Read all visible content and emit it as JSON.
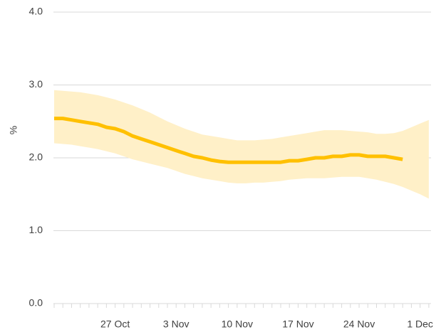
{
  "chart_data": {
    "type": "line",
    "y_label": "%",
    "categories": [
      null,
      null,
      null,
      null,
      null,
      null,
      null,
      "27 Oct",
      null,
      null,
      null,
      null,
      null,
      null,
      "3 Nov",
      null,
      null,
      null,
      null,
      null,
      null,
      "10 Nov",
      null,
      null,
      null,
      null,
      null,
      null,
      "17 Nov",
      null,
      null,
      null,
      null,
      null,
      null,
      "24 Nov",
      null,
      null,
      null,
      null,
      null,
      null,
      "1 Dec",
      null
    ],
    "series": [
      {
        "color": "#ffc000",
        "values": [
          2.54,
          2.54,
          2.52,
          2.5,
          2.48,
          2.46,
          2.42,
          2.4,
          2.36,
          2.3,
          2.26,
          2.22,
          2.18,
          2.14,
          2.1,
          2.06,
          2.02,
          2.0,
          1.97,
          1.95,
          1.94,
          1.94,
          1.94,
          1.94,
          1.94,
          1.94,
          1.94,
          1.96,
          1.96,
          1.98,
          2.0,
          2.0,
          2.02,
          2.02,
          2.04,
          2.04,
          2.02,
          2.02,
          2.02,
          2.0,
          1.98,
          null,
          null,
          null
        ]
      }
    ],
    "band": {
      "color": "#fff0c8",
      "upper": [
        2.93,
        2.92,
        2.91,
        2.9,
        2.88,
        2.86,
        2.83,
        2.8,
        2.76,
        2.72,
        2.67,
        2.62,
        2.56,
        2.5,
        2.45,
        2.4,
        2.36,
        2.32,
        2.3,
        2.28,
        2.26,
        2.24,
        2.24,
        2.24,
        2.25,
        2.26,
        2.28,
        2.3,
        2.32,
        2.34,
        2.36,
        2.38,
        2.38,
        2.38,
        2.37,
        2.36,
        2.35,
        2.33,
        2.33,
        2.34,
        2.37,
        2.42,
        2.47,
        2.52
      ],
      "lower": [
        2.2,
        2.19,
        2.18,
        2.16,
        2.14,
        2.12,
        2.09,
        2.06,
        2.02,
        1.98,
        1.95,
        1.92,
        1.89,
        1.86,
        1.82,
        1.78,
        1.75,
        1.72,
        1.7,
        1.68,
        1.66,
        1.65,
        1.65,
        1.66,
        1.66,
        1.67,
        1.68,
        1.7,
        1.71,
        1.72,
        1.72,
        1.72,
        1.73,
        1.74,
        1.74,
        1.74,
        1.72,
        1.7,
        1.67,
        1.64,
        1.6,
        1.55,
        1.5,
        1.44
      ]
    },
    "ylim": [
      0,
      4
    ],
    "yticks": [
      {
        "value": 0,
        "label": "0.0"
      },
      {
        "value": 1,
        "label": "1.0"
      },
      {
        "value": 2,
        "label": "2.0"
      },
      {
        "value": 3,
        "label": "3.0"
      },
      {
        "value": 4,
        "label": "4.0"
      }
    ],
    "grid": true
  }
}
